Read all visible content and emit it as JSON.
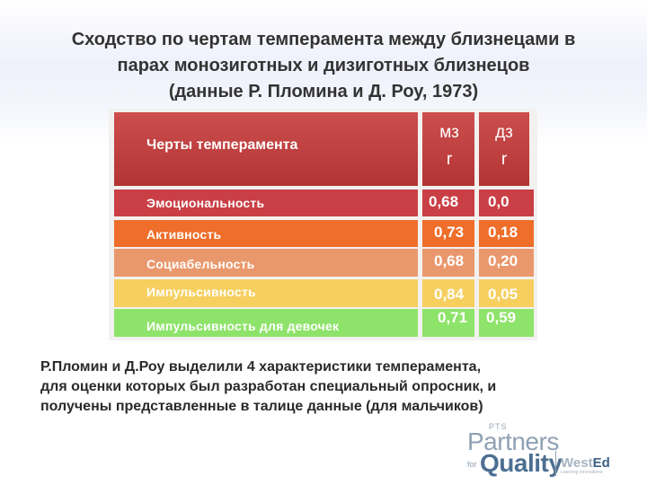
{
  "title": {
    "line1": "Сходство по чертам темперамента между близнецами в",
    "line2": "парах монозиготных и дизиготных близнецов",
    "line3": "(данные Р. Пломина и Д. Роу, 1973)"
  },
  "table": {
    "header": {
      "label": "Черты темперамента",
      "mz_line1": "мз",
      "mz_line2": "r",
      "dz_line1": "дз",
      "dz_line2": "r"
    },
    "rows": [
      {
        "label": "Эмоциональность",
        "mz": "0,68",
        "dz": "0,0",
        "color": "#c93f45",
        "label_color": "#ffffff"
      },
      {
        "label": "Активность",
        "mz": "0,73",
        "dz": "0,18",
        "color": "#ee6e2a",
        "label_color": "#222222"
      },
      {
        "label": "Социабельность",
        "mz": "0,68",
        "dz": "0,20",
        "color": "#e9986d",
        "label_color": "#222222"
      },
      {
        "label": "Импульсивность",
        "mz": "0,84",
        "dz": "0,05",
        "color": "#f6cf5f",
        "label_color": "#ffffff"
      },
      {
        "label": "Импульсивность для девочек",
        "mz": "0,71",
        "dz": "0,59",
        "color": "#8ee36a",
        "label_color": "#222222"
      }
    ]
  },
  "note": {
    "line1": "Р.Пломин и Д.Роу  выделили 4 характеристики темперамента,",
    "line2": "для оценки которых был разработан специальный опросник, и",
    "line3": "получены представленные в талице  данные (для мальчиков)"
  },
  "logo": {
    "pts": "PTS",
    "partners": "Partners",
    "for": "for",
    "quality": "Quality",
    "wested_a": "West",
    "wested_b": "Ed",
    "tagline": "Learning Innovations"
  }
}
